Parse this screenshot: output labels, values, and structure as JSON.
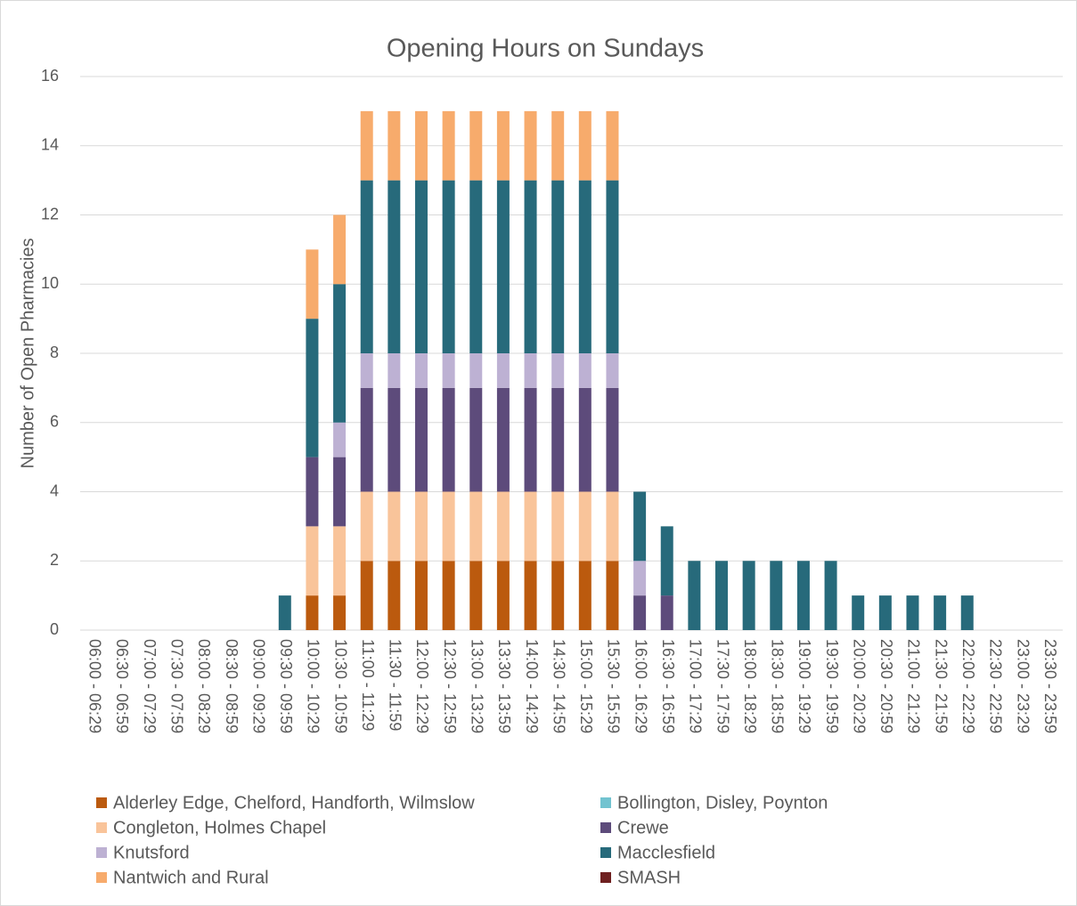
{
  "chart_data": {
    "type": "stacked_bar",
    "title": "Opening Hours on Sundays",
    "y_label": "Number of Open Pharmacies",
    "categories": [
      "06:00 - 06:29",
      "06:30 - 06:59",
      "07:00 - 07:29",
      "07:30 - 07:59",
      "08:00 - 08:29",
      "08:30 - 08:59",
      "09:00 - 09:29",
      "09:30 - 09:59",
      "10:00 - 10:29",
      "10:30 - 10:59",
      "11:00 - 11:29",
      "11:30 - 11:59",
      "12:00 - 12:29",
      "12:30 - 12:59",
      "13:00 - 13:29",
      "13:30 - 13:59",
      "14:00 - 14:29",
      "14:30 - 14:59",
      "15:00 - 15:29",
      "15:30 - 15:59",
      "16:00 - 16:29",
      "16:30 - 16:59",
      "17:00 - 17:29",
      "17:30 - 17:59",
      "18:00 - 18:29",
      "18:30 - 18:59",
      "19:00 - 19:29",
      "19:30 - 19:59",
      "20:00 - 20:29",
      "20:30 - 20:59",
      "21:00 - 21:29",
      "21:30 - 21:59",
      "22:00 - 22:29",
      "22:30 - 22:59",
      "23:00 - 23:29",
      "23:30 - 23:59"
    ],
    "series": [
      {
        "name": "Alderley Edge, Chelford, Handforth, Wilmslow",
        "color": "#bb5a0e",
        "values": [
          0,
          0,
          0,
          0,
          0,
          0,
          0,
          0,
          1,
          1,
          2,
          2,
          2,
          2,
          2,
          2,
          2,
          2,
          2,
          2,
          0,
          0,
          0,
          0,
          0,
          0,
          0,
          0,
          0,
          0,
          0,
          0,
          0,
          0,
          0,
          0
        ]
      },
      {
        "name": "Bollington, Disley, Poynton",
        "color": "#72c3d0",
        "values": [
          0,
          0,
          0,
          0,
          0,
          0,
          0,
          0,
          0,
          0,
          0,
          0,
          0,
          0,
          0,
          0,
          0,
          0,
          0,
          0,
          0,
          0,
          0,
          0,
          0,
          0,
          0,
          0,
          0,
          0,
          0,
          0,
          0,
          0,
          0,
          0
        ]
      },
      {
        "name": "Congleton, Holmes Chapel",
        "color": "#f9c49a",
        "values": [
          0,
          0,
          0,
          0,
          0,
          0,
          0,
          0,
          2,
          2,
          2,
          2,
          2,
          2,
          2,
          2,
          2,
          2,
          2,
          2,
          0,
          0,
          0,
          0,
          0,
          0,
          0,
          0,
          0,
          0,
          0,
          0,
          0,
          0,
          0,
          0
        ]
      },
      {
        "name": "Crewe",
        "color": "#5d4b7b",
        "values": [
          0,
          0,
          0,
          0,
          0,
          0,
          0,
          0,
          2,
          2,
          3,
          3,
          3,
          3,
          3,
          3,
          3,
          3,
          3,
          3,
          1,
          1,
          0,
          0,
          0,
          0,
          0,
          0,
          0,
          0,
          0,
          0,
          0,
          0,
          0,
          0
        ]
      },
      {
        "name": "Knutsford",
        "color": "#bdb1d3",
        "values": [
          0,
          0,
          0,
          0,
          0,
          0,
          0,
          0,
          0,
          1,
          1,
          1,
          1,
          1,
          1,
          1,
          1,
          1,
          1,
          1,
          1,
          0,
          0,
          0,
          0,
          0,
          0,
          0,
          0,
          0,
          0,
          0,
          0,
          0,
          0,
          0
        ]
      },
      {
        "name": "Macclesfield",
        "color": "#276a7b",
        "values": [
          0,
          0,
          0,
          0,
          0,
          0,
          0,
          1,
          4,
          4,
          5,
          5,
          5,
          5,
          5,
          5,
          5,
          5,
          5,
          5,
          2,
          2,
          2,
          2,
          2,
          2,
          2,
          2,
          1,
          1,
          1,
          1,
          1,
          0,
          0,
          0
        ]
      },
      {
        "name": "Nantwich and Rural",
        "color": "#f7ab6c",
        "values": [
          0,
          0,
          0,
          0,
          0,
          0,
          0,
          0,
          2,
          2,
          2,
          2,
          2,
          2,
          2,
          2,
          2,
          2,
          2,
          2,
          0,
          0,
          0,
          0,
          0,
          0,
          0,
          0,
          0,
          0,
          0,
          0,
          0,
          0,
          0,
          0
        ]
      },
      {
        "name": "SMASH",
        "color": "#6e2020",
        "values": [
          0,
          0,
          0,
          0,
          0,
          0,
          0,
          0,
          0,
          0,
          0,
          0,
          0,
          0,
          0,
          0,
          0,
          0,
          0,
          0,
          0,
          0,
          0,
          0,
          0,
          0,
          0,
          0,
          0,
          0,
          0,
          0,
          0,
          0,
          0,
          0
        ]
      }
    ],
    "ylim": [
      0,
      16
    ],
    "yticks": [
      0,
      2,
      4,
      6,
      8,
      10,
      12,
      14,
      16
    ],
    "grid": true
  }
}
